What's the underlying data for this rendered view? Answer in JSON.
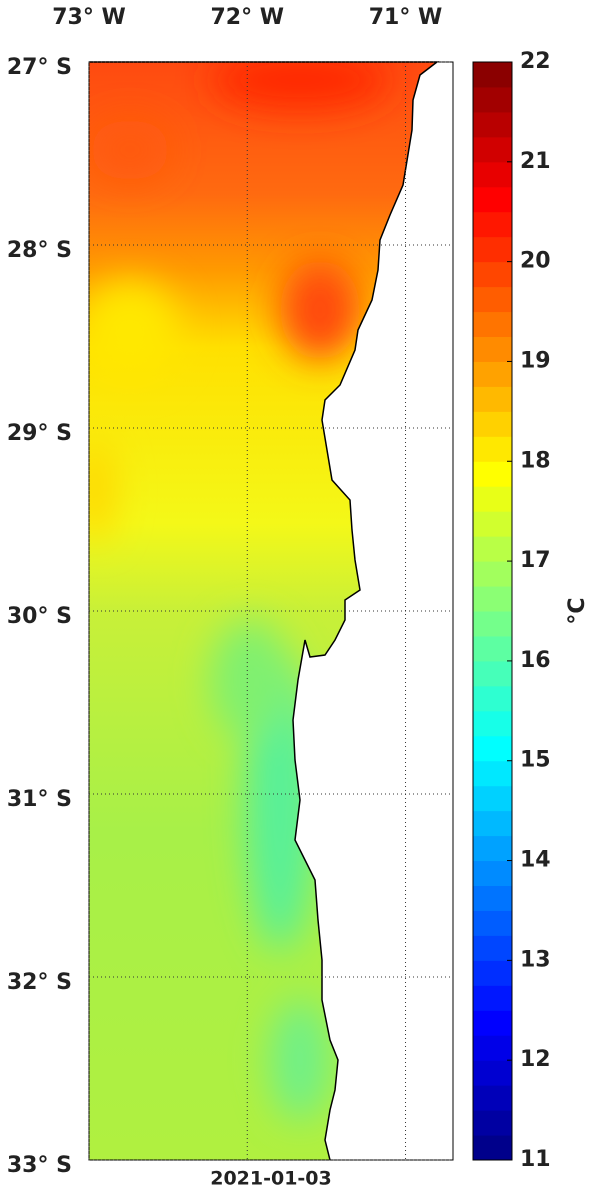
{
  "chart_data": {
    "type": "map",
    "date": "2021-01-03",
    "xlim": [
      -73,
      -70.7
    ],
    "xticks": [
      {
        "value": -73,
        "label": "73° W"
      },
      {
        "value": -72,
        "label": "72° W"
      },
      {
        "value": -71,
        "label": "71° W"
      }
    ],
    "ylim": [
      -33,
      -27
    ],
    "yticks": [
      {
        "value": -27,
        "label": "27° S"
      },
      {
        "value": -28,
        "label": "28° S"
      },
      {
        "value": -29,
        "label": "29° S"
      },
      {
        "value": -30,
        "label": "30° S"
      },
      {
        "value": -31,
        "label": "31° S"
      },
      {
        "value": -32,
        "label": "32° S"
      },
      {
        "value": -33,
        "label": "33° S"
      }
    ],
    "grid": true,
    "colorbar": {
      "clim": [
        11,
        22
      ],
      "ticks": [
        11,
        12,
        13,
        14,
        15,
        16,
        17,
        18,
        19,
        20,
        21,
        22
      ],
      "label": "°C",
      "colormap": "jet"
    }
  }
}
